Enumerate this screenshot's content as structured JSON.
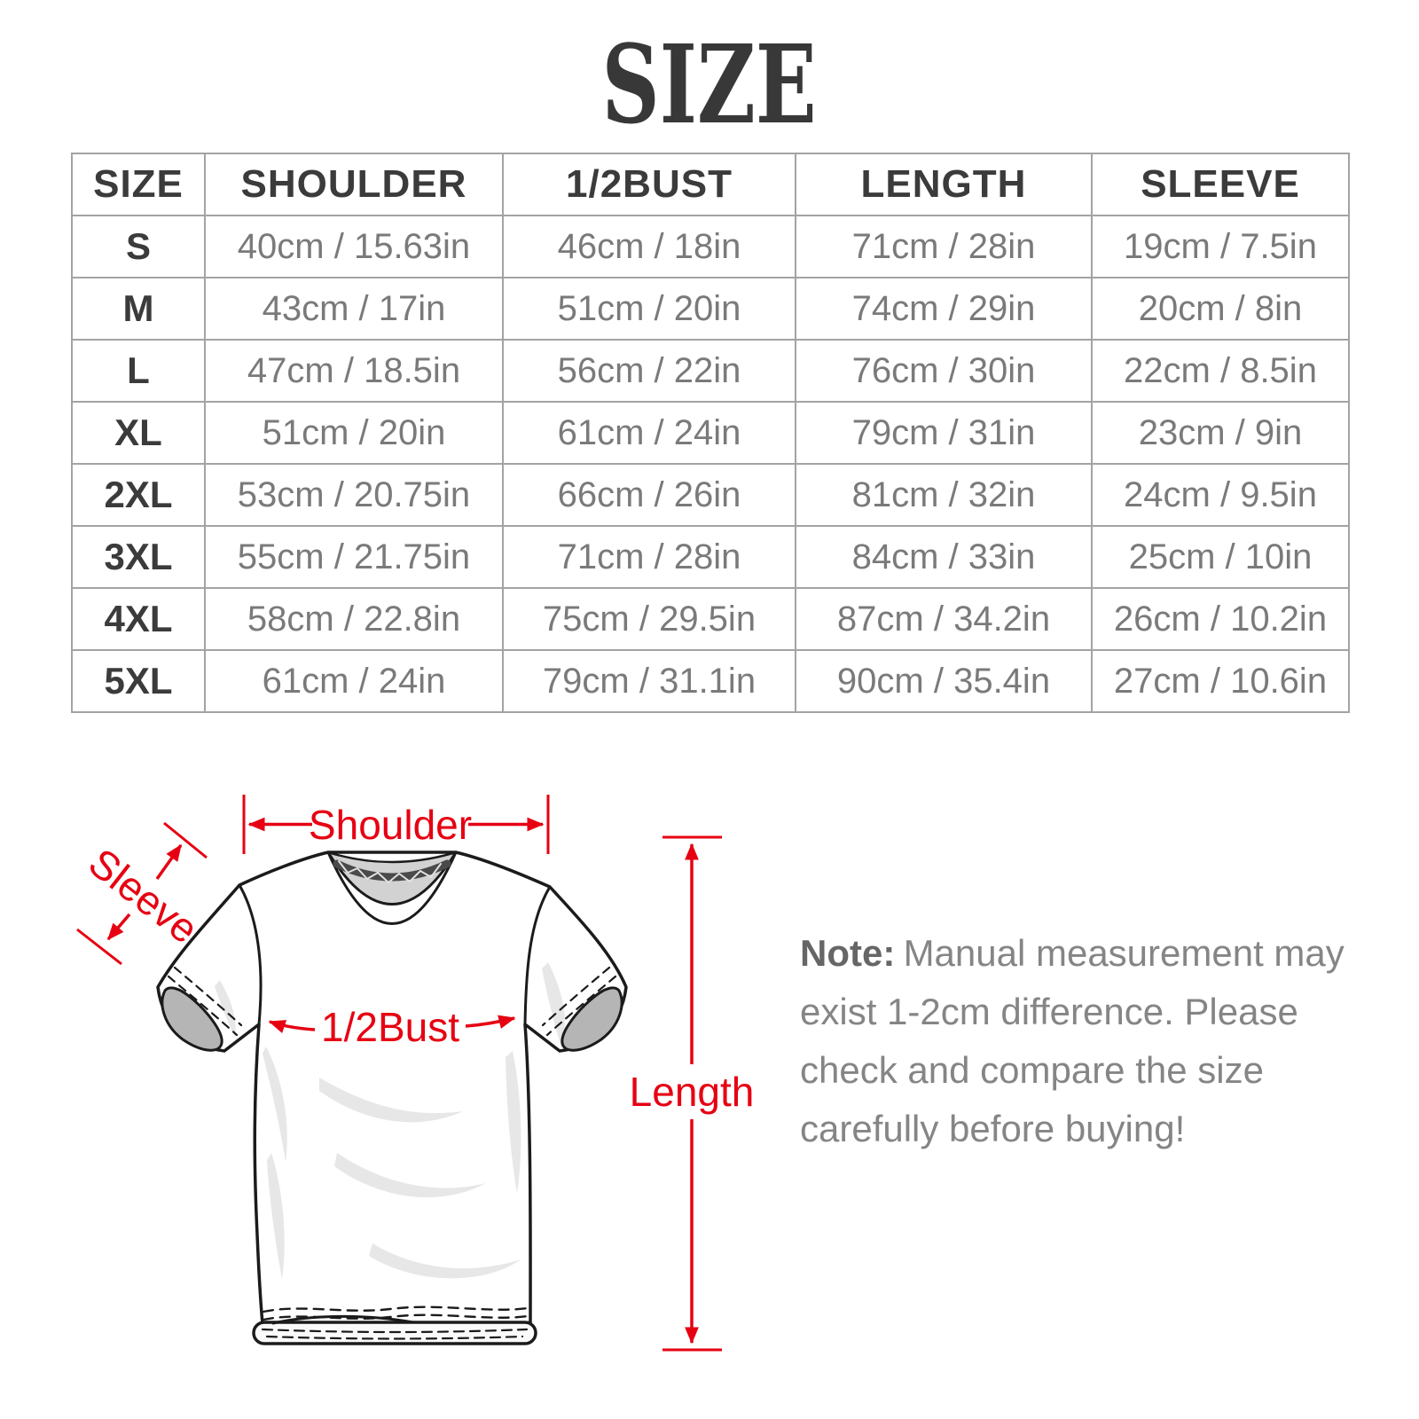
{
  "title": "SIZE",
  "size_table": {
    "headers": [
      "SIZE",
      "SHOULDER",
      "1/2BUST",
      "LENGTH",
      "SLEEVE"
    ],
    "rows": [
      [
        "S",
        "40cm / 15.63in",
        "46cm / 18in",
        "71cm / 28in",
        "19cm / 7.5in"
      ],
      [
        "M",
        "43cm / 17in",
        "51cm / 20in",
        "74cm / 29in",
        "20cm / 8in"
      ],
      [
        "L",
        "47cm / 18.5in",
        "56cm / 22in",
        "76cm / 30in",
        "22cm / 8.5in"
      ],
      [
        "XL",
        "51cm / 20in",
        "61cm / 24in",
        "79cm / 31in",
        "23cm / 9in"
      ],
      [
        "2XL",
        "53cm / 20.75in",
        "66cm / 26in",
        "81cm / 32in",
        "24cm / 9.5in"
      ],
      [
        "3XL",
        "55cm / 21.75in",
        "71cm / 28in",
        "84cm / 33in",
        "25cm / 10in"
      ],
      [
        "4XL",
        "58cm / 22.8in",
        "75cm / 29.5in",
        "87cm / 34.2in",
        "26cm / 10.2in"
      ],
      [
        "5XL",
        "61cm / 24in",
        "79cm / 31.1in",
        "90cm / 35.4in",
        "27cm / 10.6in"
      ]
    ]
  },
  "diagram": {
    "labels": {
      "shoulder": "Shoulder",
      "sleeve": "Sleeve",
      "half_bust": "1/2Bust",
      "length": "Length"
    },
    "colors": {
      "annotation_red": "#e60012",
      "outline_black": "#1b1b1b"
    }
  },
  "note": {
    "prefix": "Note:",
    "body": "Manual measurement may exist 1-2cm difference. Please check and compare the size carefully before buying!"
  }
}
